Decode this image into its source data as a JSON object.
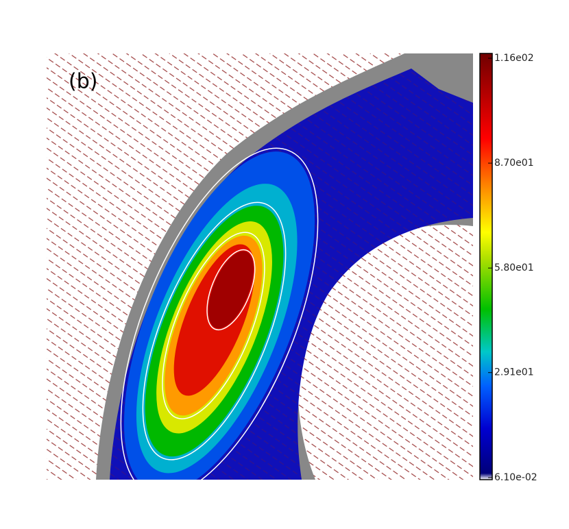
{
  "chart_data": {
    "type": "colormap",
    "annotation": "(b)",
    "clim": [
      0.061,
      116
    ],
    "cticks": [
      {
        "value": 0.061,
        "label": "6.10e-02"
      },
      {
        "value": 29.1,
        "label": "2.91e01"
      },
      {
        "value": 58,
        "label": "5.80e01"
      },
      {
        "value": 87,
        "label": "8.70e01"
      },
      {
        "value": 116,
        "label": "1.16e02"
      }
    ]
  }
}
